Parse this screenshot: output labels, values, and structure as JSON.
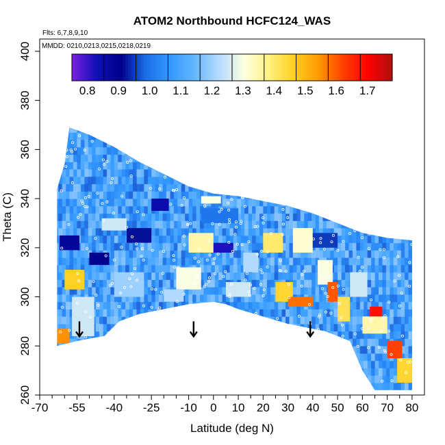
{
  "chart_data": {
    "type": "heatmap",
    "title": "ATOM2 Northbound HCFC124_WAS",
    "subtitle_flights": "Flts: 6,7,8,9,10",
    "subtitle_dates": "MMDD: 0210,0213,0215,0218,0219",
    "xlabel": "Latitude (deg N)",
    "ylabel": "Theta (C)",
    "xlim": [
      -70,
      85
    ],
    "ylim": [
      260,
      405
    ],
    "x_major_ticks": [
      -70,
      -55,
      -40,
      -25,
      -10,
      0,
      10,
      20,
      30,
      40,
      50,
      60,
      70,
      80
    ],
    "x_minor_ticks": [
      -65,
      -60,
      -50,
      -45,
      -35,
      -30,
      -20,
      -15,
      -5,
      5,
      15,
      25,
      35,
      45,
      55,
      65,
      75
    ],
    "y_ticks": [
      260,
      280,
      300,
      320,
      340,
      360,
      380,
      400
    ],
    "colorbar": {
      "min": 0.75,
      "max": 1.78,
      "tick_labels": [
        "0.8",
        "0.9",
        "1.0",
        "1.1",
        "1.2",
        "1.3",
        "1.4",
        "1.5",
        "1.6",
        "1.7"
      ],
      "tick_values": [
        0.8,
        0.9,
        1.0,
        1.1,
        1.2,
        1.3,
        1.4,
        1.5,
        1.6,
        1.7
      ],
      "colors": [
        "#7a1fe0",
        "#1010b8",
        "#00008b",
        "#1a6fe8",
        "#3399ff",
        "#66b8ff",
        "#b8dcff",
        "#ffffe0",
        "#fff080",
        "#ffd020",
        "#ff9a00",
        "#ff4000",
        "#ff0000",
        "#b01010"
      ]
    },
    "curtain_top": [
      [
        -63,
        344
      ],
      [
        -60,
        354
      ],
      [
        -58,
        369
      ],
      [
        -50,
        366
      ],
      [
        -40,
        361
      ],
      [
        -30,
        355
      ],
      [
        -20,
        350
      ],
      [
        -10,
        345
      ],
      [
        0,
        342
      ],
      [
        10,
        341
      ],
      [
        20,
        339
      ],
      [
        30,
        337
      ],
      [
        40,
        334
      ],
      [
        50,
        330
      ],
      [
        60,
        326
      ],
      [
        70,
        324
      ],
      [
        80,
        323
      ]
    ],
    "curtain_bottom": [
      [
        -63,
        280
      ],
      [
        -55,
        282
      ],
      [
        -50,
        283
      ],
      [
        -44,
        284
      ],
      [
        -38,
        290
      ],
      [
        -30,
        293
      ],
      [
        -20,
        295
      ],
      [
        -10,
        297
      ],
      [
        0,
        298
      ],
      [
        5,
        297
      ],
      [
        10,
        295
      ],
      [
        20,
        292
      ],
      [
        30,
        289
      ],
      [
        40,
        287
      ],
      [
        45,
        286
      ],
      [
        50,
        284
      ],
      [
        55,
        282
      ],
      [
        60,
        270
      ],
      [
        65,
        262
      ],
      [
        80,
        262
      ]
    ],
    "arrows_latitude": [
      -54,
      -8,
      39
    ],
    "arrows_theta_top": 290,
    "background_value": 1.07,
    "features": [
      {
        "x": [
          -60,
          -52
        ],
        "y": [
          303,
          311
        ],
        "v": 1.46
      },
      {
        "x": [
          -57,
          -48
        ],
        "y": [
          284,
          300
        ],
        "v": 1.25
      },
      {
        "x": [
          -63,
          -58
        ],
        "y": [
          281,
          287
        ],
        "v": 1.55
      },
      {
        "x": [
          -62,
          -54
        ],
        "y": [
          319,
          325
        ],
        "v": 0.88
      },
      {
        "x": [
          -50,
          -42
        ],
        "y": [
          313,
          318
        ],
        "v": 0.9
      },
      {
        "x": [
          -40,
          -28
        ],
        "y": [
          300,
          310
        ],
        "v": 1.2
      },
      {
        "x": [
          -25,
          -18
        ],
        "y": [
          335,
          340
        ],
        "v": 0.85
      },
      {
        "x": [
          -15,
          -5
        ],
        "y": [
          303,
          312
        ],
        "v": 1.3
      },
      {
        "x": [
          -10,
          0
        ],
        "y": [
          318,
          326
        ],
        "v": 1.35
      },
      {
        "x": [
          -20,
          -12
        ],
        "y": [
          298,
          303
        ],
        "v": 1.22
      },
      {
        "x": [
          5,
          15
        ],
        "y": [
          300,
          306
        ],
        "v": 1.25
      },
      {
        "x": [
          20,
          28
        ],
        "y": [
          318,
          326
        ],
        "v": 1.4
      },
      {
        "x": [
          25,
          32
        ],
        "y": [
          298,
          306
        ],
        "v": 1.45
      },
      {
        "x": [
          32,
          40
        ],
        "y": [
          318,
          328
        ],
        "v": 1.32
      },
      {
        "x": [
          42,
          48
        ],
        "y": [
          305,
          315
        ],
        "v": 1.3
      },
      {
        "x": [
          46,
          50
        ],
        "y": [
          298,
          306
        ],
        "v": 1.6
      },
      {
        "x": [
          50,
          55
        ],
        "y": [
          290,
          300
        ],
        "v": 1.42
      },
      {
        "x": [
          63,
          68
        ],
        "y": [
          289,
          296
        ],
        "v": 1.68
      },
      {
        "x": [
          70,
          76
        ],
        "y": [
          275,
          282
        ],
        "v": 1.62
      },
      {
        "x": [
          74,
          80
        ],
        "y": [
          265,
          275
        ],
        "v": 1.45
      },
      {
        "x": [
          60,
          70
        ],
        "y": [
          285,
          292
        ],
        "v": 1.35
      },
      {
        "x": [
          40,
          50
        ],
        "y": [
          320,
          326
        ],
        "v": 0.95
      },
      {
        "x": [
          -5,
          10
        ],
        "y": [
          330,
          336
        ],
        "v": 1.0
      },
      {
        "x": [
          -35,
          -25
        ],
        "y": [
          322,
          328
        ],
        "v": 0.92
      },
      {
        "x": [
          55,
          62
        ],
        "y": [
          300,
          310
        ],
        "v": 1.25
      },
      {
        "x": [
          12,
          18
        ],
        "y": [
          310,
          318
        ],
        "v": 1.22
      },
      {
        "x": [
          -5,
          3
        ],
        "y": [
          338,
          341
        ],
        "v": 1.3
      },
      {
        "x": [
          30,
          40
        ],
        "y": [
          296,
          300
        ],
        "v": 1.58
      },
      {
        "x": [
          -45,
          -35
        ],
        "y": [
          327,
          332
        ],
        "v": 1.25
      },
      {
        "x": [
          0,
          8
        ],
        "y": [
          318,
          322
        ],
        "v": 0.82
      }
    ]
  }
}
